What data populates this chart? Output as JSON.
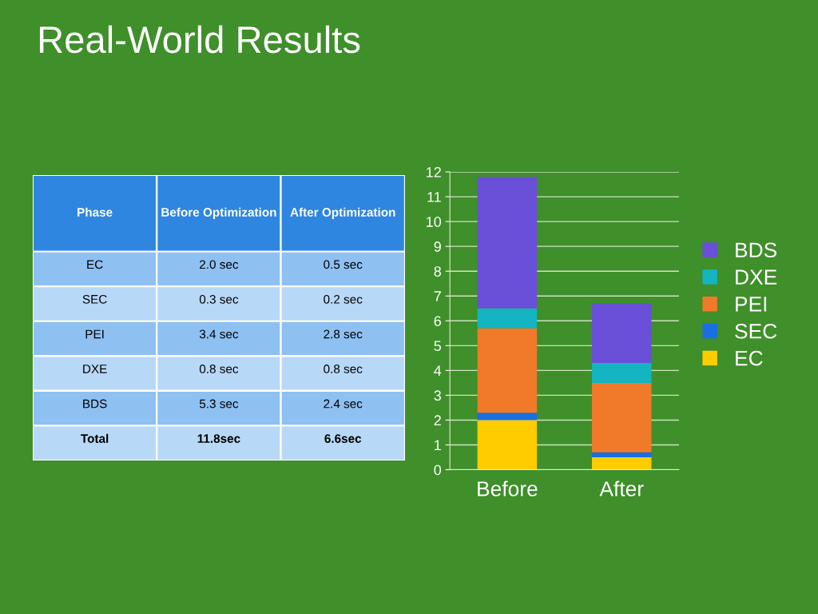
{
  "chart_data": [
    {
      "type": "other",
      "title": "Real-World Results",
      "categories": [
        "EC",
        "SEC",
        "PEI",
        "DXE",
        "BDS",
        "Total"
      ],
      "annotations": [
        "Phase"
      ],
      "series": [
        {
          "name": "Before Optimization",
          "values": [
            2.0,
            0.3,
            3.4,
            0.8,
            5.3,
            11.8
          ],
          "colors": [
            "#8ec0f2",
            "#b8d8f8",
            "#8ec0f2",
            "#b8d8f8",
            "#8ec0f2",
            "#b8d8f8"
          ],
          "value_labels": [
            "2.0 sec",
            "0.3 sec",
            "3.4 sec",
            "0.8 sec",
            "5.3 sec",
            "11.8sec"
          ]
        },
        {
          "name": "After Optimization",
          "values": [
            0.5,
            0.2,
            2.8,
            0.8,
            2.4,
            6.6
          ],
          "colors": [
            "#8ec0f2",
            "#b8d8f8",
            "#8ec0f2",
            "#b8d8f8",
            "#8ec0f2",
            "#b8d8f8"
          ],
          "value_labels": [
            "0.5 sec",
            "0.2 sec",
            "2.8 sec",
            "0.8 sec",
            "2.4 sec",
            "6.6sec"
          ]
        }
      ]
    },
    {
      "type": "bar",
      "stacked": true,
      "categories": [
        "Before",
        "After"
      ],
      "series": [
        {
          "name": "EC",
          "color": "#ffcc00",
          "values": [
            2.0,
            0.5
          ]
        },
        {
          "name": "SEC",
          "color": "#1a6fe0",
          "values": [
            0.3,
            0.2
          ]
        },
        {
          "name": "PEI",
          "color": "#f07a2a",
          "values": [
            3.4,
            2.8
          ]
        },
        {
          "name": "DXE",
          "color": "#14b4c0",
          "values": [
            0.8,
            0.8
          ]
        },
        {
          "name": "BDS",
          "color": "#6a4fd8",
          "values": [
            5.3,
            2.4
          ]
        }
      ],
      "ylim": [
        0,
        12
      ],
      "yticks": [
        0,
        1,
        2,
        3,
        4,
        5,
        6,
        7,
        8,
        9,
        10,
        11,
        12
      ],
      "grid": "y",
      "legend": "right"
    }
  ]
}
